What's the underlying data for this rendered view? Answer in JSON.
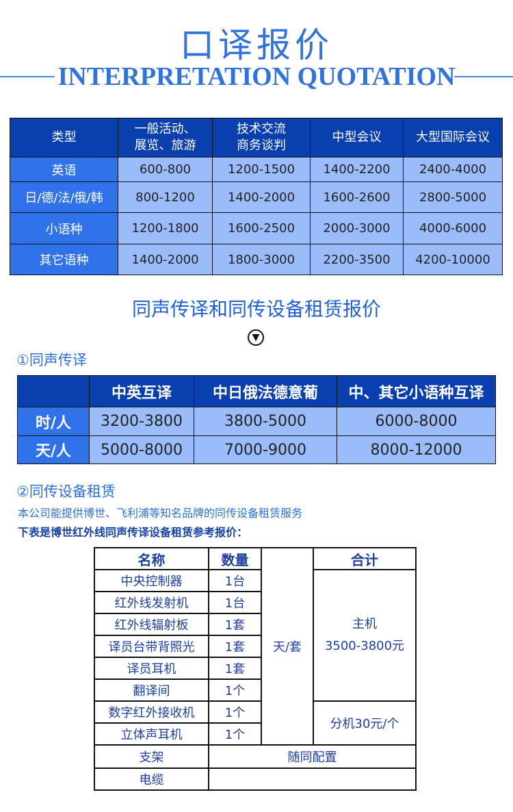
{
  "header": {
    "title_cn": "口译报价",
    "title_en": "INTERPRETATION QUOTATION"
  },
  "interpretation_table": {
    "headers": [
      "类型",
      "一般活动、\n展览、旅游",
      "技术交流\n商务谈判",
      "中型会议",
      "大型国际会议"
    ],
    "rows": [
      [
        "英语",
        "600-800",
        "1200-1500",
        "1400-2200",
        "2400-4000"
      ],
      [
        "日/德/法/俄/韩",
        "800-1200",
        "1400-2000",
        "1600-2600",
        "2800-5000"
      ],
      [
        "小语种",
        "1200-1800",
        "1600-2500",
        "2000-3000",
        "4000-6000"
      ],
      [
        "其它语种",
        "1400-2000",
        "1800-3000",
        "2200-3500",
        "4200-10000"
      ]
    ]
  },
  "section_title": "同声传译和同传设备租赁报价",
  "chevron_icon": "circle-chevron-down",
  "simultaneous": {
    "title": "①同声传译",
    "headers": [
      "",
      "中英互译",
      "中日俄法德意葡",
      "中、其它小语种互译"
    ],
    "rows": [
      [
        "时/人",
        "3200-3800",
        "3800-5000",
        "6000-8000"
      ],
      [
        "天/人",
        "5000-8000",
        "7000-9000",
        "8000-12000"
      ]
    ]
  },
  "equipment": {
    "title": "②同传设备租赁",
    "desc": "本公司能提供博世、飞利浦等知名品牌的同传设备租赁服务",
    "note": "下表是博世红外线同声传译设备租赁参考报价：",
    "headers": {
      "name": "名称",
      "qty": "数量",
      "total": "合计"
    },
    "items": [
      [
        "中央控制器",
        "1台"
      ],
      [
        "红外线发射机",
        "1台"
      ],
      [
        "红外线辐射板",
        "1套"
      ],
      [
        "译员台带背照光",
        "1套"
      ],
      [
        "译员耳机",
        "1套"
      ],
      [
        "翻译间",
        "1个"
      ],
      [
        "数字红外接收机",
        "1个"
      ],
      [
        "立体声耳机",
        "1个"
      ]
    ],
    "unit": "天/套",
    "main_label": "主机",
    "main_price": "3500-3800元",
    "sub_price": "分机30元/个",
    "extra": [
      [
        "支架",
        "随同配置"
      ],
      [
        "电缆",
        ""
      ]
    ]
  },
  "colors": {
    "header": "#0a3faf",
    "first_col": "#2f72ea",
    "cell": "#9bbcfb",
    "title": "#2f72e0"
  }
}
